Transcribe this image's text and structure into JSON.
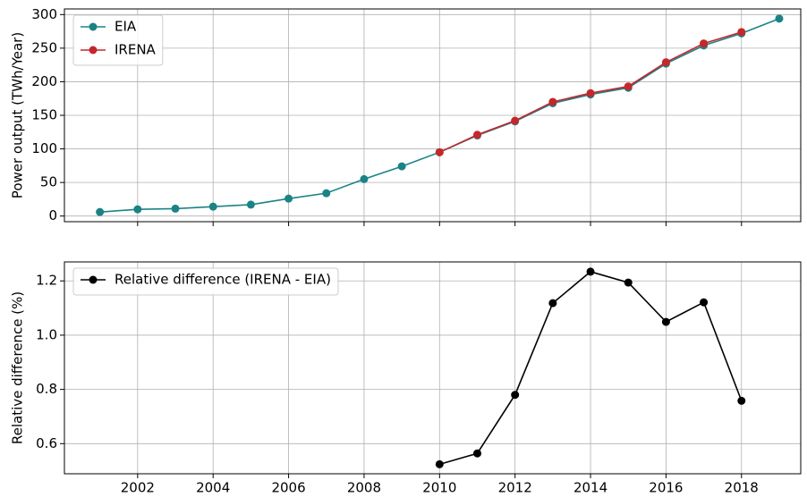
{
  "chart_data": [
    {
      "type": "line",
      "y_label": "Power output (TWh/Year)",
      "x": [
        2001,
        2002,
        2003,
        2004,
        2005,
        2006,
        2007,
        2008,
        2009,
        2010,
        2011,
        2012,
        2013,
        2014,
        2015,
        2016,
        2017,
        2018,
        2019
      ],
      "series": [
        {
          "name": "EIA",
          "color": "#1b8385",
          "values": [
            6,
            10,
            11,
            14,
            17,
            26,
            34,
            55,
            74,
            95,
            120,
            141,
            168,
            181,
            191,
            227,
            254,
            272,
            294
          ]
        },
        {
          "name": "IRENA",
          "color": "#c4282b",
          "values": [
            null,
            null,
            null,
            null,
            null,
            null,
            null,
            null,
            null,
            95,
            121,
            142,
            170,
            183,
            193,
            229,
            257,
            274,
            null
          ]
        }
      ],
      "xlim": [
        2000.06,
        2019.57
      ],
      "xticks": [
        2002,
        2004,
        2006,
        2008,
        2010,
        2012,
        2014,
        2016,
        2018
      ],
      "ylim": [
        -8.4,
        308.4
      ],
      "yticks": [
        0,
        50,
        100,
        150,
        200,
        250,
        300
      ],
      "grid": true,
      "legend": "upper left",
      "show_xtick_labels": false
    },
    {
      "type": "line",
      "y_label": "Relative difference (%)",
      "x": [
        2010,
        2011,
        2012,
        2013,
        2014,
        2015,
        2016,
        2017,
        2018
      ],
      "series": [
        {
          "name": "Relative difference (IRENA - EIA)",
          "color": "#000000",
          "values": [
            0.524,
            0.564,
            0.78,
            1.118,
            1.234,
            1.194,
            1.049,
            1.121,
            0.758
          ]
        }
      ],
      "xlim": [
        2000.06,
        2019.57
      ],
      "xticks": [
        2002,
        2004,
        2006,
        2008,
        2010,
        2012,
        2014,
        2016,
        2018
      ],
      "ylim": [
        0.489,
        1.27
      ],
      "yticks": [
        0.6,
        0.8,
        {
          "value": 1,
          "label": "1.0"
        },
        1.2
      ],
      "grid": true,
      "legend": "upper left",
      "show_xtick_labels": true
    }
  ]
}
